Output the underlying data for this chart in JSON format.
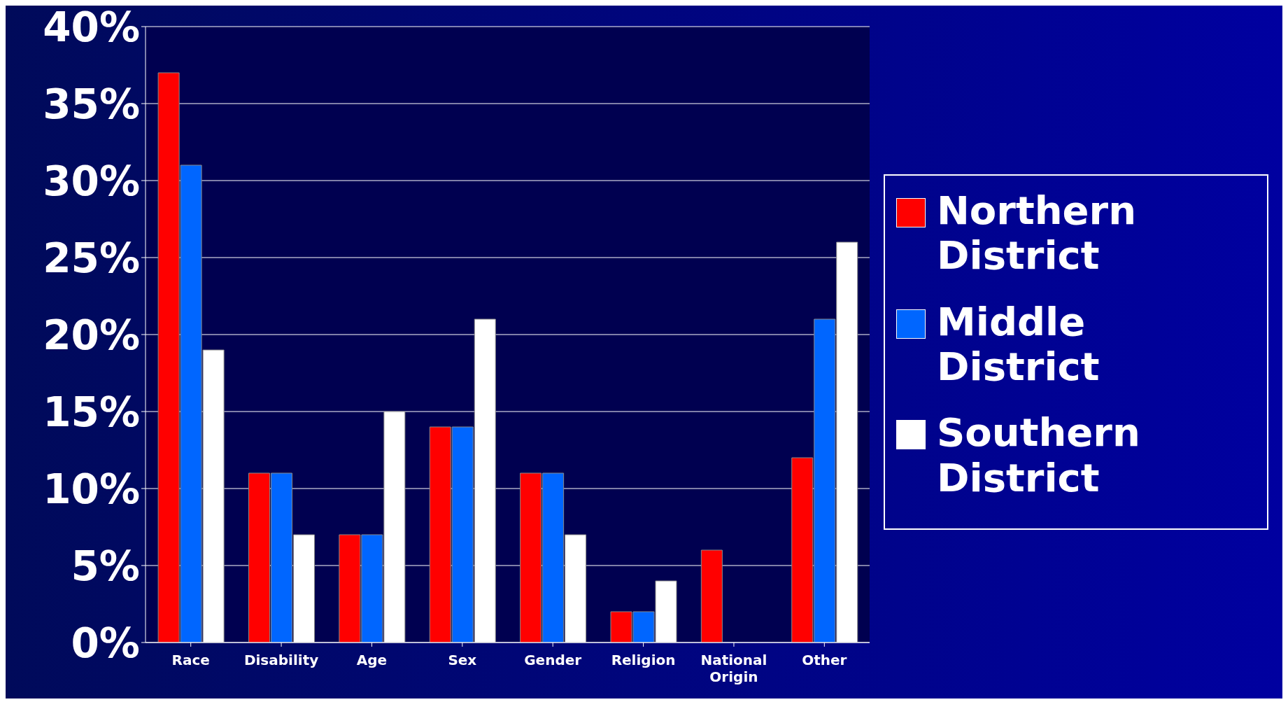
{
  "chart_data": {
    "type": "bar",
    "categories": [
      "Race",
      "Disability",
      "Age",
      "Sex",
      "Gender",
      "Religion",
      "National Origin",
      "Other"
    ],
    "series": [
      {
        "name": "Northern District",
        "color": "#ff0000",
        "values": [
          37,
          11,
          7,
          14,
          11,
          2,
          6,
          12
        ]
      },
      {
        "name": "Middle District",
        "color": "#0066ff",
        "values": [
          31,
          11,
          7,
          14,
          11,
          2,
          0,
          21
        ]
      },
      {
        "name": "Southern District",
        "color": "#ffffff",
        "values": [
          19,
          7,
          15,
          21,
          7,
          4,
          0,
          26
        ]
      }
    ],
    "ylim": [
      0,
      40
    ],
    "yticks": [
      {
        "value": 0,
        "label": "0%"
      },
      {
        "value": 5,
        "label": "5%"
      },
      {
        "value": 10,
        "label": "10%"
      },
      {
        "value": 15,
        "label": "15%"
      },
      {
        "value": 20,
        "label": "20%"
      },
      {
        "value": 25,
        "label": "25%"
      },
      {
        "value": 30,
        "label": "30%"
      },
      {
        "value": 35,
        "label": "35%"
      },
      {
        "value": 40,
        "label": "40%"
      }
    ],
    "grid": "y",
    "legend": "right"
  }
}
